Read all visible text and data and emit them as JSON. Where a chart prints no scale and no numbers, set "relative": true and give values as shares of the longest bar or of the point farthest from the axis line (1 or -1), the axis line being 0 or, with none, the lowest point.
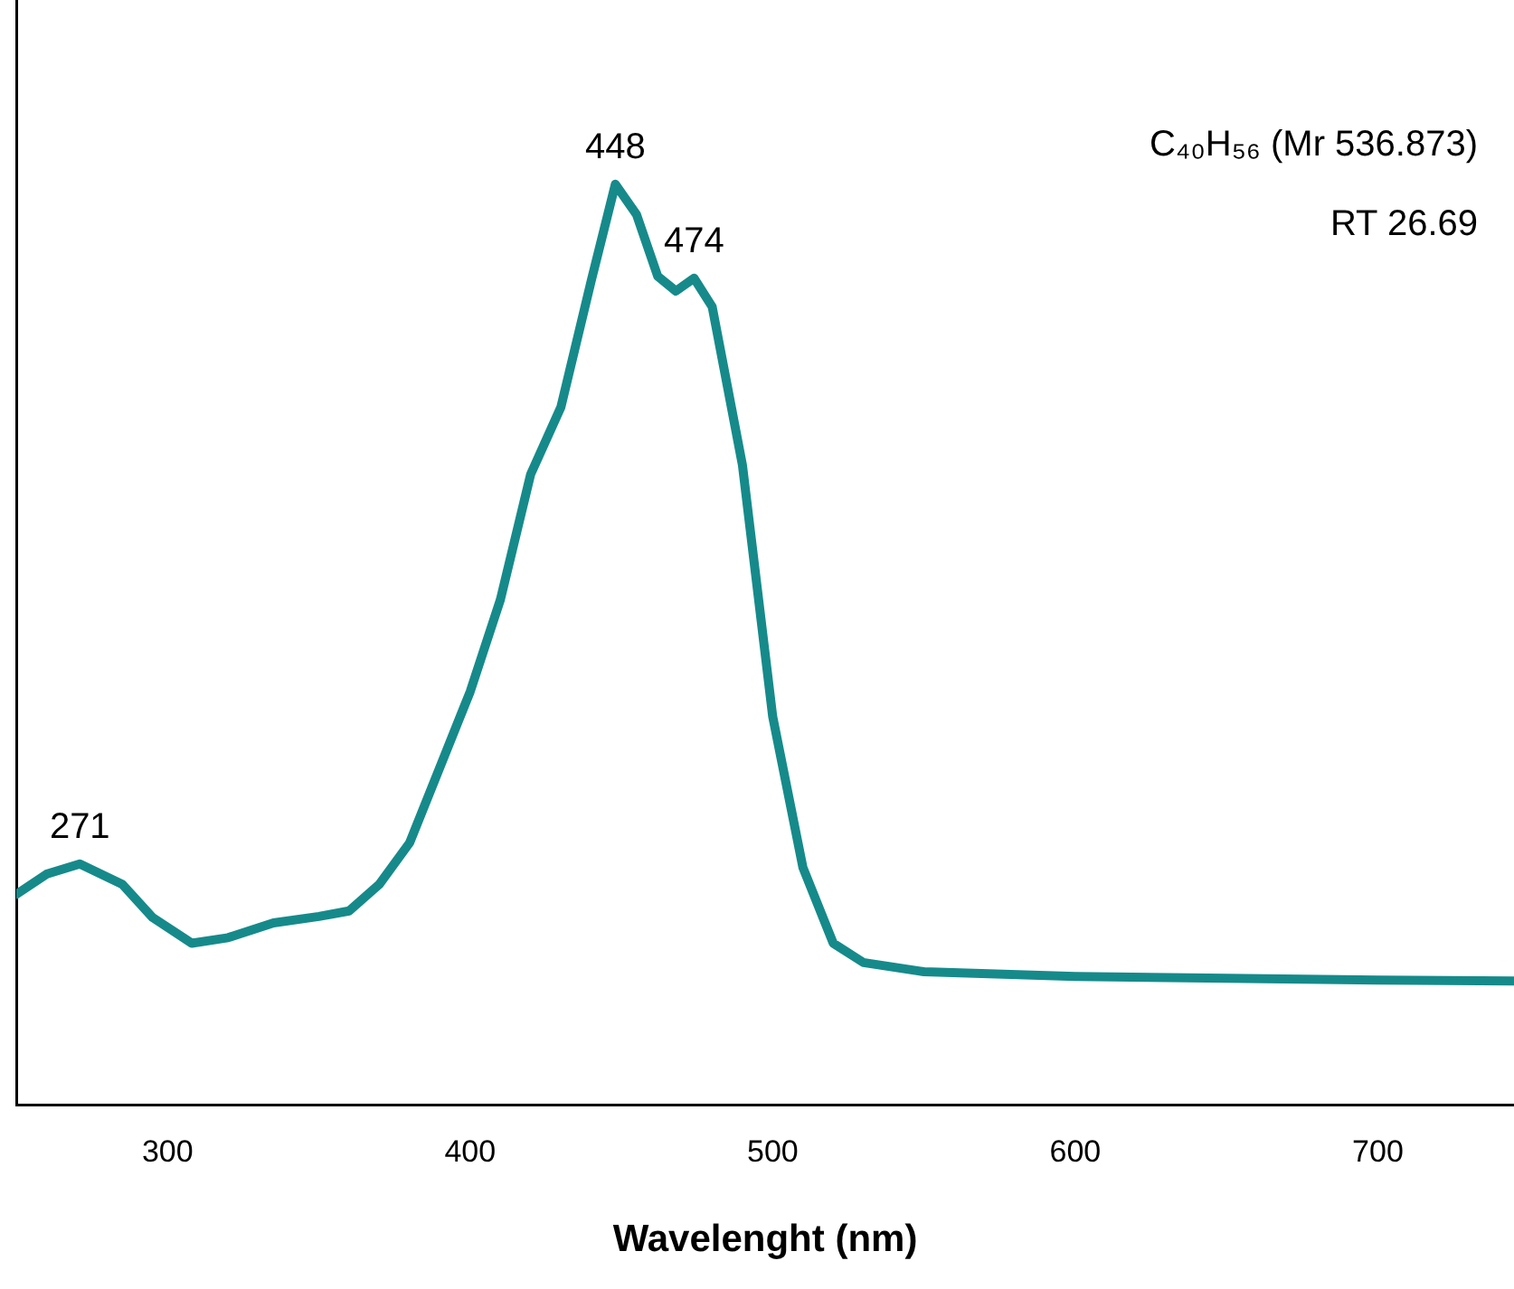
{
  "chart_data": {
    "type": "line",
    "xlabel": "Wavelenght (nm)",
    "relative": true,
    "grid": false,
    "legend": false,
    "marker": "none",
    "line_style": "solid",
    "xlim": [
      250,
      745
    ],
    "xticks": [
      300,
      400,
      500,
      600,
      700
    ],
    "series": [
      {
        "color": "#168a8a",
        "x": [
          250,
          260,
          271,
          285,
          295,
          308,
          320,
          335,
          350,
          360,
          370,
          380,
          390,
          400,
          410,
          420,
          430,
          440,
          448,
          455,
          462,
          468,
          474,
          480,
          490,
          500,
          510,
          520,
          530,
          550,
          600,
          650,
          700,
          745
        ],
        "values": [
          0.229,
          0.251,
          0.262,
          0.24,
          0.204,
          0.176,
          0.182,
          0.198,
          0.205,
          0.211,
          0.24,
          0.285,
          0.367,
          0.449,
          0.549,
          0.685,
          0.758,
          0.895,
          1,
          0.967,
          0.9,
          0.884,
          0.898,
          0.867,
          0.695,
          0.422,
          0.258,
          0.176,
          0.155,
          0.145,
          0.14,
          0.138,
          0.136,
          0.135
        ]
      }
    ],
    "annotations": [
      {
        "text": "271",
        "x": 271,
        "y": 0.262
      },
      {
        "text": "448",
        "x": 448,
        "y": 1
      },
      {
        "text": "474",
        "x": 474,
        "y": 0.898
      },
      "C₄₀H₅₆ (Mr 536.873)",
      "RT 26.69"
    ]
  }
}
